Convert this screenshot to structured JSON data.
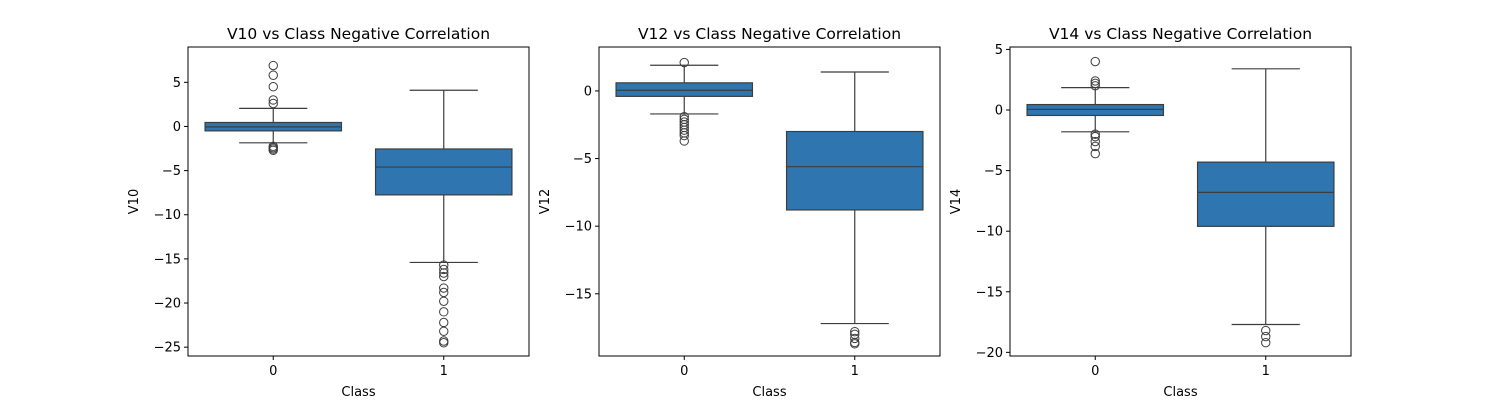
{
  "chart_data": [
    {
      "type": "box",
      "title": "V10 vs Class Negative Correlation",
      "xlabel": "Class",
      "ylabel": "V10",
      "categories": [
        "0",
        "1"
      ],
      "ylim": [
        -26.0,
        9.0
      ],
      "yticks": [
        5,
        0,
        -5,
        -10,
        -15,
        -20,
        -25
      ],
      "ytick_labels": [
        "5",
        "0",
        "−5",
        "−10",
        "−15",
        "−20",
        "−25"
      ],
      "box_color": "#2f76b0",
      "boxes": [
        {
          "q1": -0.5,
          "median": -0.05,
          "q3": 0.45,
          "whisker_low": -1.85,
          "whisker_high": 2.05,
          "outliers": [
            2.6,
            3.0,
            4.5,
            5.8,
            6.9,
            -2.25,
            -2.4,
            -2.55,
            -2.7
          ]
        },
        {
          "q1": -7.75,
          "median": -4.6,
          "q3": -2.55,
          "whisker_low": -15.4,
          "whisker_high": 4.1,
          "outliers": [
            -15.7,
            -16.2,
            -16.6,
            -17.0,
            -18.3,
            -18.8,
            -19.8,
            -21.0,
            -22.2,
            -23.2,
            -24.3,
            -24.5
          ]
        }
      ]
    },
    {
      "type": "box",
      "title": "V12 vs Class Negative Correlation",
      "xlabel": "Class",
      "ylabel": "V12",
      "categories": [
        "0",
        "1"
      ],
      "ylim": [
        -19.6,
        3.25
      ],
      "yticks": [
        0,
        -5,
        -10,
        -15
      ],
      "ytick_labels": [
        "0",
        "−5",
        "−10",
        "−15"
      ],
      "box_color": "#2f76b0",
      "boxes": [
        {
          "q1": -0.4,
          "median": 0.05,
          "q3": 0.6,
          "whisker_low": -1.7,
          "whisker_high": 1.9,
          "outliers": [
            2.1,
            -1.9,
            -2.1,
            -2.3,
            -2.5,
            -2.7,
            -2.9,
            -3.1,
            -3.3,
            -3.7
          ]
        },
        {
          "q1": -8.8,
          "median": -5.6,
          "q3": -3.0,
          "whisker_low": -17.2,
          "whisker_high": 1.4,
          "outliers": [
            -17.8,
            -18.0,
            -18.3,
            -18.6,
            -18.7
          ]
        }
      ]
    },
    {
      "type": "box",
      "title": "V14 vs Class Negative Correlation",
      "xlabel": "Class",
      "ylabel": "V14",
      "categories": [
        "0",
        "1"
      ],
      "ylim": [
        -20.3,
        5.2
      ],
      "yticks": [
        5,
        0,
        -5,
        -10,
        -15,
        -20
      ],
      "ytick_labels": [
        "5",
        "0",
        "−5",
        "−10",
        "−15",
        "−20"
      ],
      "box_color": "#2f76b0",
      "boxes": [
        {
          "q1": -0.45,
          "median": 0.05,
          "q3": 0.45,
          "whisker_low": -1.8,
          "whisker_high": 1.85,
          "outliers": [
            4.0,
            2.4,
            2.2,
            2.0,
            -2.0,
            -2.2,
            -2.6,
            -3.0,
            -3.6
          ]
        },
        {
          "q1": -9.6,
          "median": -6.8,
          "q3": -4.3,
          "whisker_low": -17.7,
          "whisker_high": 3.4,
          "outliers": [
            -18.2,
            -18.7,
            -19.2
          ]
        }
      ]
    }
  ]
}
